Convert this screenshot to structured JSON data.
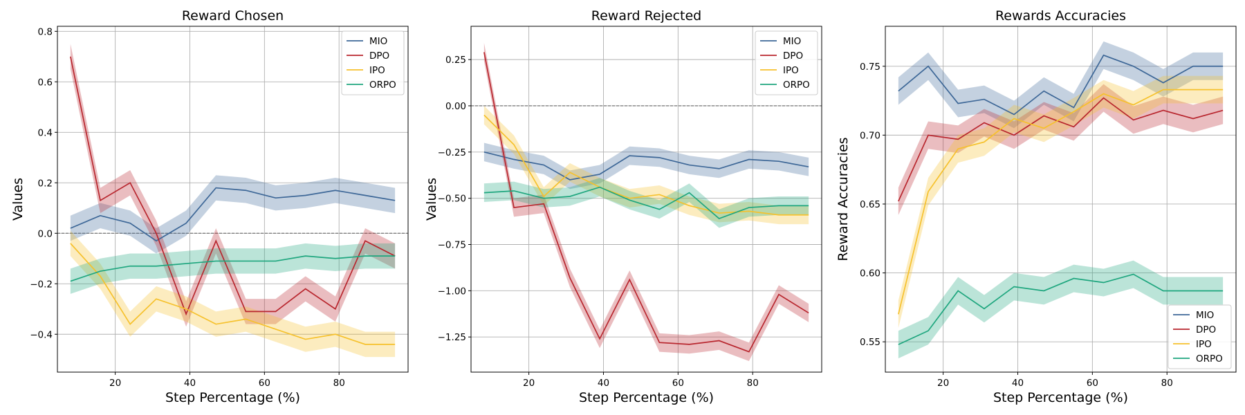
{
  "chart_data": [
    {
      "type": "line",
      "title": "Reward Chosen",
      "xlabel": "Step Percentage (%)",
      "ylabel": "Values",
      "xlim": [
        4.5,
        98.5
      ],
      "ylim": [
        -0.55,
        0.82
      ],
      "xticks": [
        20,
        40,
        60,
        80
      ],
      "yticks": [
        -0.4,
        -0.2,
        0.0,
        0.2,
        0.4,
        0.6,
        0.8
      ],
      "yticklabels": [
        "−0.4",
        "−0.2",
        "0.0",
        "0.2",
        "0.4",
        "0.6",
        "0.8"
      ],
      "xticklabels": [
        "20",
        "40",
        "60",
        "80"
      ],
      "zero_line": true,
      "legend_loc": "upper right",
      "x": [
        8,
        16,
        24,
        31,
        39,
        47,
        55,
        63,
        71,
        79,
        87,
        95
      ],
      "series": [
        {
          "name": "MIO",
          "color": "#3d6797",
          "values": [
            0.02,
            0.07,
            0.04,
            -0.03,
            0.04,
            0.18,
            0.17,
            0.14,
            0.15,
            0.17,
            0.15,
            0.13
          ],
          "band": 0.05
        },
        {
          "name": "DPO",
          "color": "#b8262e",
          "values": [
            0.7,
            0.13,
            0.2,
            0.0,
            -0.32,
            -0.03,
            -0.31,
            -0.31,
            -0.22,
            -0.3,
            -0.03,
            -0.09
          ],
          "band": 0.05
        },
        {
          "name": "IPO",
          "color": "#f6c12c",
          "values": [
            -0.04,
            -0.17,
            -0.36,
            -0.26,
            -0.3,
            -0.36,
            -0.34,
            -0.38,
            -0.42,
            -0.4,
            -0.44,
            -0.44
          ],
          "band": 0.05
        },
        {
          "name": "ORPO",
          "color": "#1ea67e",
          "values": [
            -0.19,
            -0.15,
            -0.13,
            -0.13,
            -0.12,
            -0.11,
            -0.11,
            -0.11,
            -0.09,
            -0.1,
            -0.09,
            -0.09
          ],
          "band": 0.05
        }
      ]
    },
    {
      "type": "line",
      "title": "Reward Rejected",
      "xlabel": "Step Percentage (%)",
      "ylabel": "Values",
      "xlim": [
        4.5,
        98.5
      ],
      "ylim": [
        -1.44,
        0.43
      ],
      "xticks": [
        20,
        40,
        60,
        80
      ],
      "yticks": [
        -1.25,
        -1.0,
        -0.75,
        -0.5,
        -0.25,
        0.0,
        0.25
      ],
      "yticklabels": [
        "−1.25",
        "−1.00",
        "−0.75",
        "−0.50",
        "−0.25",
        "0.00",
        "0.25"
      ],
      "xticklabels": [
        "20",
        "40",
        "60",
        "80"
      ],
      "zero_line": true,
      "legend_loc": "upper right",
      "x": [
        8,
        16,
        24,
        31,
        39,
        47,
        55,
        63,
        71,
        79,
        87,
        95
      ],
      "series": [
        {
          "name": "MIO",
          "color": "#3d6797",
          "values": [
            -0.25,
            -0.29,
            -0.32,
            -0.4,
            -0.37,
            -0.27,
            -0.28,
            -0.32,
            -0.34,
            -0.29,
            -0.3,
            -0.33
          ],
          "band": 0.05
        },
        {
          "name": "DPO",
          "color": "#b8262e",
          "values": [
            0.29,
            -0.55,
            -0.53,
            -0.93,
            -1.26,
            -0.94,
            -1.28,
            -1.29,
            -1.27,
            -1.33,
            -1.02,
            -1.12
          ],
          "band": 0.05
        },
        {
          "name": "IPO",
          "color": "#f6c12c",
          "values": [
            -0.05,
            -0.21,
            -0.49,
            -0.36,
            -0.44,
            -0.5,
            -0.48,
            -0.54,
            -0.58,
            -0.57,
            -0.59,
            -0.59
          ],
          "band": 0.05
        },
        {
          "name": "ORPO",
          "color": "#1ea67e",
          "values": [
            -0.47,
            -0.46,
            -0.5,
            -0.49,
            -0.44,
            -0.51,
            -0.56,
            -0.47,
            -0.61,
            -0.55,
            -0.54,
            -0.54
          ],
          "band": 0.05
        }
      ]
    },
    {
      "type": "line",
      "title": "Rewards Accuracies",
      "xlabel": "Step Percentage (%)",
      "ylabel": "Reward Accuracies",
      "xlim": [
        4.5,
        98.5
      ],
      "ylim": [
        0.528,
        0.779
      ],
      "xticks": [
        20,
        40,
        60,
        80
      ],
      "yticks": [
        0.55,
        0.6,
        0.65,
        0.7,
        0.75
      ],
      "yticklabels": [
        "0.55",
        "0.60",
        "0.65",
        "0.70",
        "0.75"
      ],
      "xticklabels": [
        "20",
        "40",
        "60",
        "80"
      ],
      "zero_line": false,
      "legend_loc": "lower right",
      "x": [
        8,
        16,
        24,
        31,
        39,
        47,
        55,
        63,
        71,
        79,
        87,
        95
      ],
      "series": [
        {
          "name": "MIO",
          "color": "#3d6797",
          "values": [
            0.732,
            0.75,
            0.723,
            0.726,
            0.715,
            0.732,
            0.72,
            0.758,
            0.75,
            0.738,
            0.75,
            0.75
          ],
          "band": 0.01
        },
        {
          "name": "DPO",
          "color": "#b8262e",
          "values": [
            0.652,
            0.7,
            0.697,
            0.709,
            0.7,
            0.714,
            0.706,
            0.727,
            0.711,
            0.718,
            0.712,
            0.718
          ],
          "band": 0.01
        },
        {
          "name": "IPO",
          "color": "#f6c12c",
          "values": [
            0.57,
            0.659,
            0.69,
            0.695,
            0.712,
            0.705,
            0.717,
            0.73,
            0.722,
            0.733,
            0.733,
            0.733
          ],
          "band": 0.01
        },
        {
          "name": "ORPO",
          "color": "#1ea67e",
          "values": [
            0.548,
            0.558,
            0.587,
            0.574,
            0.59,
            0.587,
            0.596,
            0.593,
            0.599,
            0.587,
            0.587,
            0.587
          ],
          "band": 0.01
        }
      ]
    }
  ]
}
